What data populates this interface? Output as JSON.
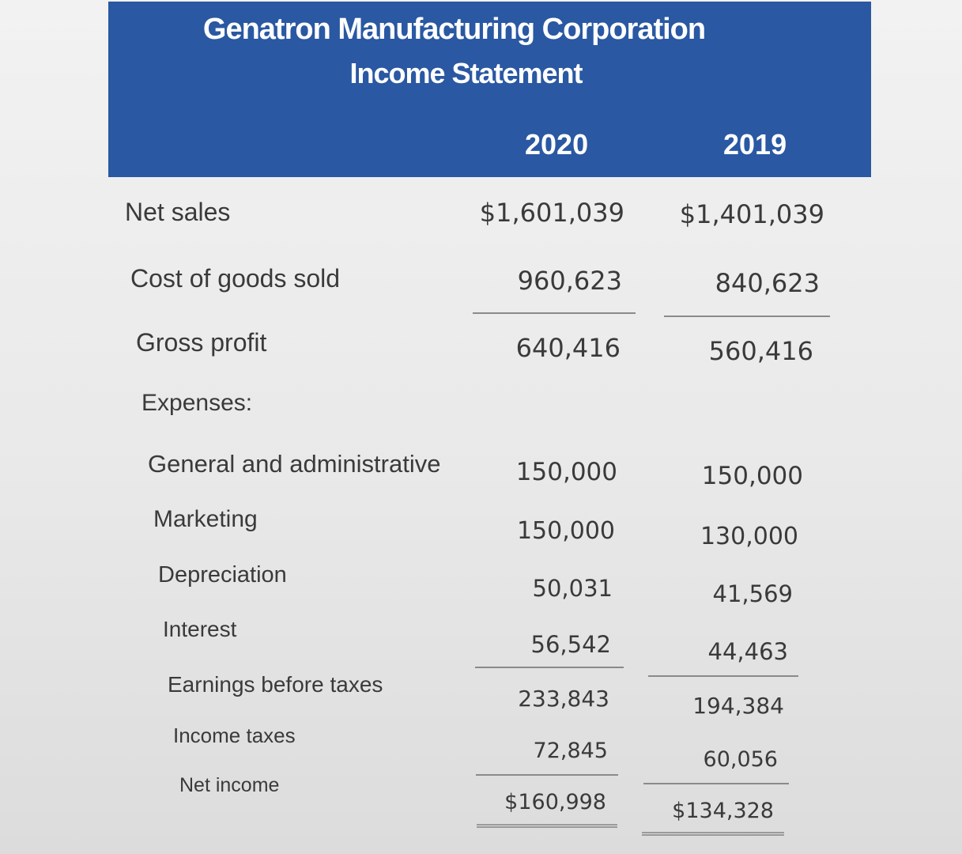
{
  "header": {
    "company": "Genatron Manufacturing Corporation",
    "statement": "Income Statement",
    "year_2020": "2020",
    "year_2019": "2019"
  },
  "rows": [
    {
      "label": "Net sales",
      "v2020": "$1,601,039",
      "v2019": "$1,401,039"
    },
    {
      "label": "Cost of goods sold",
      "v2020": "960,623",
      "v2019": "840,623"
    },
    {
      "label": "Gross profit",
      "v2020": "640,416",
      "v2019": "560,416"
    },
    {
      "label": "Expenses:",
      "v2020": "",
      "v2019": ""
    },
    {
      "label": "General and administrative",
      "v2020": "150,000",
      "v2019": "150,000"
    },
    {
      "label": "Marketing",
      "v2020": "150,000",
      "v2019": "130,000"
    },
    {
      "label": "Depreciation",
      "v2020": "50,031",
      "v2019": "41,569"
    },
    {
      "label": "Interest",
      "v2020": "56,542",
      "v2019": "44,463"
    },
    {
      "label": "Earnings before taxes",
      "v2020": "233,843",
      "v2019": "194,384"
    },
    {
      "label": "Income taxes",
      "v2020": "72,845",
      "v2019": "60,056"
    },
    {
      "label": "Net income",
      "v2020": "$160,998",
      "v2019": "$134,328"
    }
  ],
  "colors": {
    "header_bg": "#2a58a2",
    "header_text": "#ffffff",
    "body_text": "#3a3a3a"
  }
}
